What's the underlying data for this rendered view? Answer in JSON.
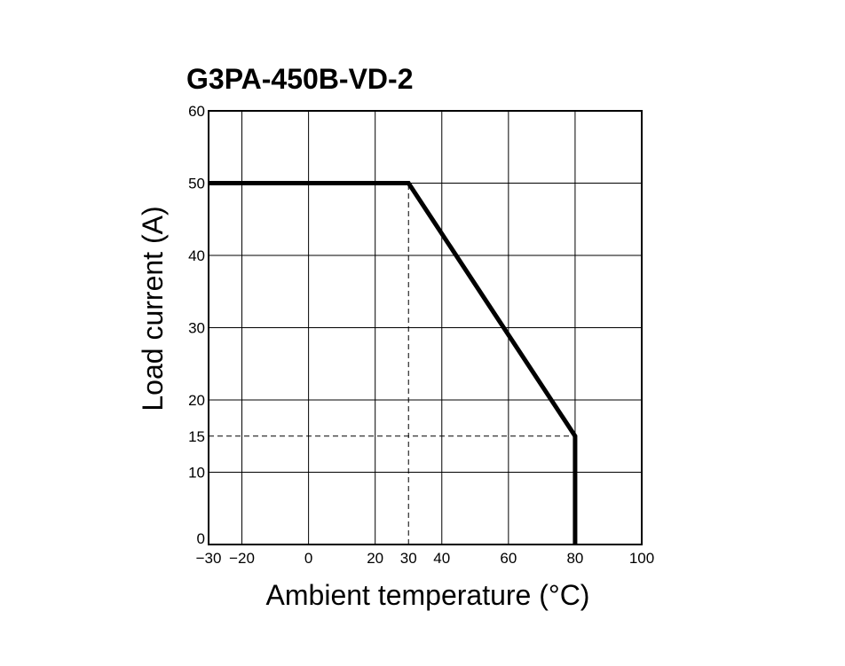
{
  "chart_data": {
    "type": "line",
    "title": "G3PA-450B-VD-2",
    "xlabel": "Ambient temperature (°C)",
    "ylabel": "Load current (A)",
    "xlim": [
      -30,
      100
    ],
    "ylim": [
      0,
      60
    ],
    "xticks": [
      -30,
      -20,
      0,
      20,
      30,
      40,
      60,
      80,
      100
    ],
    "xtick_labels": [
      "−30",
      "−20",
      "0",
      "20",
      "30",
      "40",
      "60",
      "80",
      "100"
    ],
    "yticks": [
      0,
      10,
      15,
      20,
      30,
      40,
      50,
      60
    ],
    "ytick_labels": [
      "0",
      "10",
      "15",
      "20",
      "30",
      "40",
      "50",
      "60"
    ],
    "grid_x": [
      -20,
      0,
      20,
      40,
      60,
      80
    ],
    "grid_y": [
      10,
      20,
      30,
      40,
      50
    ],
    "grid": true,
    "series": [
      {
        "x": [
          -30,
          30,
          80,
          80
        ],
        "y": [
          50,
          50,
          15,
          0
        ]
      }
    ],
    "reference_lines": [
      {
        "x": [
          30,
          30
        ],
        "y": [
          0,
          50
        ]
      },
      {
        "x": [
          -30,
          80
        ],
        "y": [
          15,
          15
        ]
      }
    ]
  }
}
